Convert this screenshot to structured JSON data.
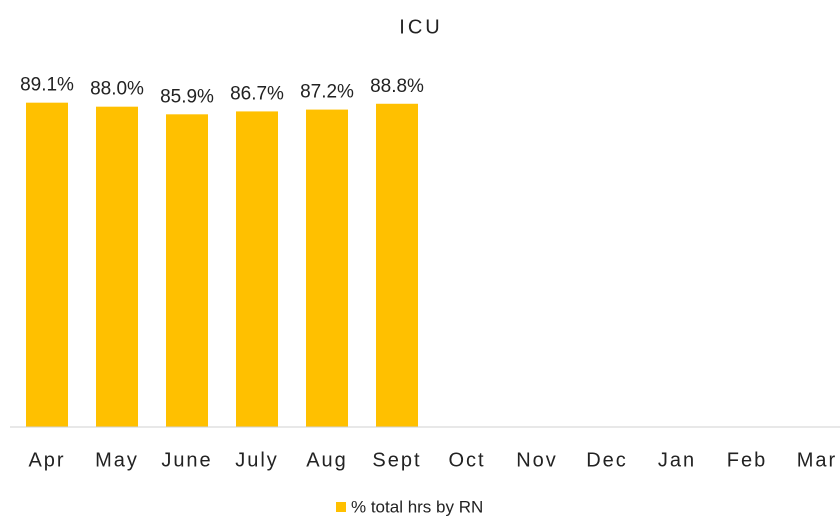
{
  "chart_data": {
    "type": "bar",
    "title": "ICU",
    "categories": [
      "Apr",
      "May",
      "June",
      "July",
      "Aug",
      "Sept",
      "Oct",
      "Nov",
      "Dec",
      "Jan",
      "Feb",
      "Mar"
    ],
    "series": [
      {
        "name": "% total hrs by RN",
        "color": "#FFC000",
        "values": [
          89.1,
          88.0,
          85.9,
          86.7,
          87.2,
          88.8,
          null,
          null,
          null,
          null,
          null,
          null
        ],
        "value_labels": [
          "89.1%",
          "88.0%",
          "85.9%",
          "86.7%",
          "87.2%",
          "88.8%",
          null,
          null,
          null,
          null,
          null,
          null
        ]
      }
    ],
    "ylim": [
      0,
      100
    ],
    "legend": "bottom"
  }
}
